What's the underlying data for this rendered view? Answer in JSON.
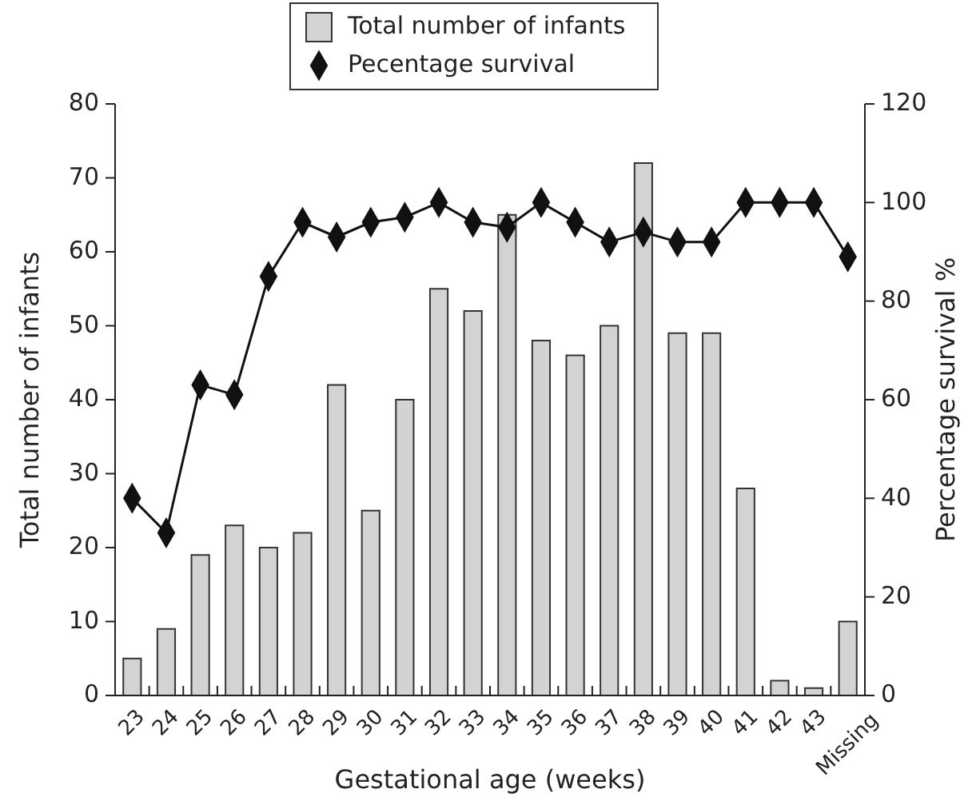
{
  "chart_data": {
    "type": "bar",
    "xlabel": "Gestational age (weeks)",
    "ylabel": "Total number of infants",
    "y2label": "Percentage survival %",
    "categories": [
      "23",
      "24",
      "25",
      "26",
      "27",
      "28",
      "29",
      "30",
      "31",
      "32",
      "33",
      "34",
      "35",
      "36",
      "37",
      "38",
      "39",
      "40",
      "41",
      "42",
      "43",
      "Missing"
    ],
    "series": [
      {
        "name": "Total number of infants",
        "color": "#d3d3d3",
        "values": [
          5,
          9,
          19,
          23,
          20,
          22,
          42,
          25,
          40,
          55,
          52,
          65,
          48,
          46,
          50,
          72,
          49,
          49,
          28,
          2,
          1,
          10
        ]
      },
      {
        "name": "Pecentage survival",
        "type": "line",
        "axis": "y2",
        "color": "#111111",
        "marker": "diamond",
        "values": [
          40,
          33,
          63,
          61,
          85,
          96,
          93,
          96,
          97,
          100,
          96,
          95,
          100,
          96,
          92,
          94,
          92,
          92,
          100,
          100,
          100,
          89
        ]
      }
    ],
    "ylim": [
      0,
      80
    ],
    "yticks": [
      0,
      10,
      20,
      30,
      40,
      50,
      60,
      70,
      80
    ],
    "y2lim": [
      0,
      120
    ],
    "y2ticks": [
      0,
      20,
      40,
      60,
      80,
      100,
      120
    ],
    "legend": "top",
    "grid": false
  }
}
